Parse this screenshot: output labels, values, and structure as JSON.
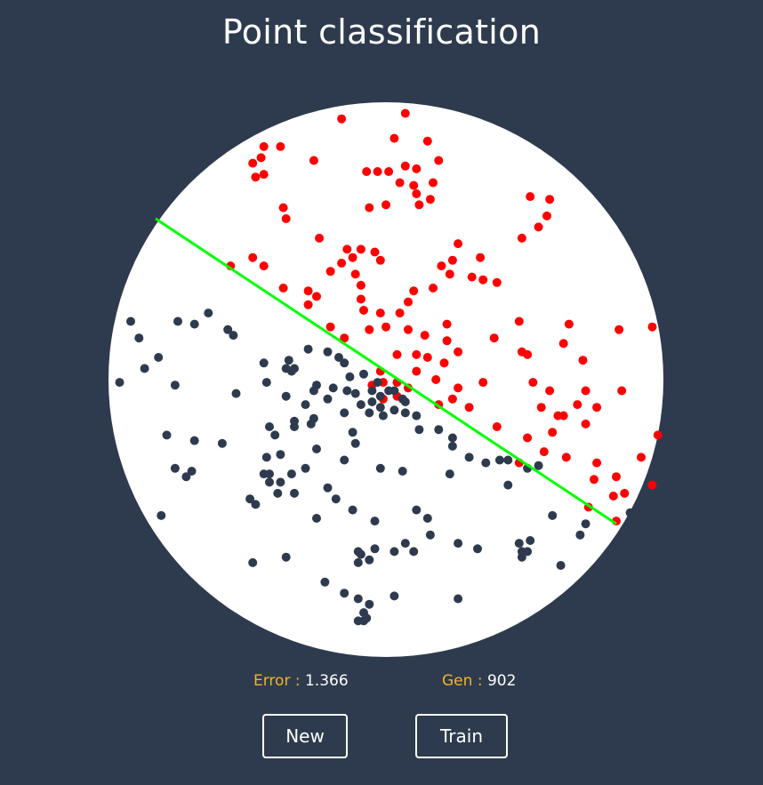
{
  "page": {
    "title": "Point classification",
    "colors": {
      "background": "#2e3b4e",
      "plot": "#ffffff",
      "class_a": "#ff0000",
      "class_b": "#2e3b4e",
      "boundary": "#00ff00",
      "label": "#f0b429"
    }
  },
  "stats": {
    "error_label": "Error",
    "error_value": "1.366",
    "gen_label": "Gen",
    "gen_value": "902"
  },
  "buttons": {
    "new_label": "New",
    "train_label": "Train"
  },
  "chart_data": {
    "type": "scatter",
    "title": "",
    "xlabel": "",
    "ylabel": "",
    "xlim": [
      -1,
      1
    ],
    "ylim": [
      -1,
      1
    ],
    "plot_shape": "circle",
    "grid": false,
    "boundary_line": {
      "x": [
        -0.83,
        0.83
      ],
      "y": [
        0.58,
        -0.52
      ]
    },
    "series": [
      {
        "class": "red",
        "points": [
          [
            -0.16,
            0.94
          ],
          [
            0.07,
            0.96
          ],
          [
            -0.38,
            0.84
          ],
          [
            -0.44,
            0.84
          ],
          [
            -0.26,
            0.79
          ],
          [
            0.03,
            0.87
          ],
          [
            0.15,
            0.86
          ],
          [
            0.19,
            0.79
          ],
          [
            -0.45,
            0.8
          ],
          [
            -0.48,
            0.78
          ],
          [
            -0.47,
            0.73
          ],
          [
            -0.44,
            0.74
          ],
          [
            -0.07,
            0.75
          ],
          [
            -0.03,
            0.75
          ],
          [
            0.01,
            0.75
          ],
          [
            0.07,
            0.77
          ],
          [
            0.11,
            0.76
          ],
          [
            0.05,
            0.71
          ],
          [
            0.1,
            0.7
          ],
          [
            0.17,
            0.71
          ],
          [
            0.11,
            0.67
          ],
          [
            0.16,
            0.65
          ],
          [
            0.12,
            0.63
          ],
          [
            0.0,
            0.63
          ],
          [
            -0.37,
            0.62
          ],
          [
            -0.36,
            0.58
          ],
          [
            -0.06,
            0.62
          ],
          [
            0.52,
            0.66
          ],
          [
            0.59,
            0.65
          ],
          [
            0.58,
            0.59
          ],
          [
            0.55,
            0.55
          ],
          [
            0.49,
            0.51
          ],
          [
            -0.24,
            0.51
          ],
          [
            -0.14,
            0.47
          ],
          [
            -0.12,
            0.44
          ],
          [
            -0.09,
            0.47
          ],
          [
            -0.04,
            0.46
          ],
          [
            -0.16,
            0.42
          ],
          [
            -0.02,
            0.43
          ],
          [
            0.26,
            0.49
          ],
          [
            0.24,
            0.43
          ],
          [
            0.34,
            0.44
          ],
          [
            -0.48,
            0.44
          ],
          [
            -0.44,
            0.41
          ],
          [
            -0.56,
            0.41
          ],
          [
            -0.2,
            0.39
          ],
          [
            -0.11,
            0.38
          ],
          [
            -0.09,
            0.34
          ],
          [
            -0.09,
            0.29
          ],
          [
            0.2,
            0.41
          ],
          [
            0.31,
            0.37
          ],
          [
            0.35,
            0.36
          ],
          [
            0.4,
            0.35
          ],
          [
            0.23,
            0.38
          ],
          [
            0.17,
            0.33
          ],
          [
            0.1,
            0.32
          ],
          [
            0.08,
            0.28
          ],
          [
            -0.37,
            0.33
          ],
          [
            -0.28,
            0.32
          ],
          [
            -0.25,
            0.3
          ],
          [
            -0.28,
            0.27
          ],
          [
            -0.08,
            0.25
          ],
          [
            -0.02,
            0.24
          ],
          [
            0.05,
            0.24
          ],
          [
            -0.06,
            0.18
          ],
          [
            0.0,
            0.19
          ],
          [
            0.08,
            0.18
          ],
          [
            0.22,
            0.2
          ],
          [
            -0.2,
            0.19
          ],
          [
            -0.15,
            0.15
          ],
          [
            0.14,
            0.16
          ],
          [
            0.22,
            0.14
          ],
          [
            0.26,
            0.1
          ],
          [
            0.48,
            0.21
          ],
          [
            0.66,
            0.2
          ],
          [
            0.96,
            0.19
          ],
          [
            0.39,
            0.15
          ],
          [
            0.49,
            0.1
          ],
          [
            0.51,
            0.09
          ],
          [
            0.64,
            0.13
          ],
          [
            0.71,
            0.07
          ],
          [
            0.84,
            0.18
          ],
          [
            0.04,
            0.09
          ],
          [
            0.11,
            0.09
          ],
          [
            0.15,
            0.08
          ],
          [
            0.21,
            0.06
          ],
          [
            -0.02,
            0.03
          ],
          [
            0.04,
            -0.01
          ],
          [
            -0.01,
            -0.01
          ],
          [
            0.08,
            -0.03
          ],
          [
            0.11,
            0.03
          ],
          [
            0.18,
            0.0
          ],
          [
            0.26,
            -0.03
          ],
          [
            0.35,
            -0.01
          ],
          [
            0.53,
            -0.01
          ],
          [
            0.59,
            -0.04
          ],
          [
            0.72,
            -0.04
          ],
          [
            0.85,
            -0.04
          ],
          [
            0.24,
            -0.07
          ],
          [
            0.04,
            -0.06
          ],
          [
            0.19,
            -0.09
          ],
          [
            0.3,
            -0.1
          ],
          [
            0.56,
            -0.1
          ],
          [
            0.69,
            -0.09
          ],
          [
            0.76,
            -0.1
          ],
          [
            -0.01,
            -0.07
          ],
          [
            -0.05,
            -0.02
          ],
          [
            0.4,
            -0.17
          ],
          [
            0.62,
            -0.13
          ],
          [
            0.64,
            -0.13
          ],
          [
            0.51,
            -0.21
          ],
          [
            0.6,
            -0.19
          ],
          [
            0.72,
            -0.16
          ],
          [
            0.48,
            -0.3
          ],
          [
            0.57,
            -0.26
          ],
          [
            0.65,
            -0.28
          ],
          [
            0.76,
            -0.3
          ],
          [
            0.92,
            -0.28
          ],
          [
            0.75,
            -0.36
          ],
          [
            0.83,
            -0.35
          ],
          [
            0.86,
            -0.41
          ],
          [
            0.96,
            -0.38
          ],
          [
            0.98,
            -0.2
          ],
          [
            0.82,
            -0.42
          ],
          [
            0.83,
            -0.51
          ],
          [
            0.73,
            -0.46
          ]
        ]
      },
      {
        "class": "blue",
        "points": [
          [
            -0.92,
            0.21
          ],
          [
            -0.75,
            0.21
          ],
          [
            -0.69,
            0.2
          ],
          [
            -0.64,
            0.24
          ],
          [
            -0.57,
            0.18
          ],
          [
            -0.55,
            0.16
          ],
          [
            -0.89,
            0.15
          ],
          [
            -0.82,
            0.08
          ],
          [
            -0.87,
            0.04
          ],
          [
            -0.96,
            -0.01
          ],
          [
            -0.76,
            -0.02
          ],
          [
            -0.54,
            -0.05
          ],
          [
            -0.44,
            0.06
          ],
          [
            -0.43,
            -0.01
          ],
          [
            -0.36,
            0.04
          ],
          [
            -0.35,
            0.07
          ],
          [
            -0.28,
            0.11
          ],
          [
            -0.21,
            0.1
          ],
          [
            -0.17,
            0.08
          ],
          [
            -0.15,
            0.06
          ],
          [
            -0.13,
            0.01
          ],
          [
            -0.08,
            0.02
          ],
          [
            -0.05,
            -0.04
          ],
          [
            -0.02,
            -0.06
          ],
          [
            -0.03,
            -0.01
          ],
          [
            0.01,
            -0.04
          ],
          [
            0.03,
            -0.04
          ],
          [
            0.06,
            -0.07
          ],
          [
            0.07,
            -0.08
          ],
          [
            -0.34,
            0.03
          ],
          [
            -0.33,
            0.04
          ],
          [
            -0.36,
            -0.06
          ],
          [
            -0.29,
            -0.09
          ],
          [
            -0.26,
            -0.04
          ],
          [
            -0.25,
            -0.02
          ],
          [
            -0.19,
            -0.03
          ],
          [
            -0.21,
            -0.07
          ],
          [
            -0.14,
            -0.04
          ],
          [
            -0.11,
            -0.05
          ],
          [
            -0.09,
            -0.09
          ],
          [
            -0.15,
            -0.12
          ],
          [
            -0.06,
            -0.12
          ],
          [
            -0.05,
            -0.08
          ],
          [
            -0.02,
            -0.1
          ],
          [
            -0.01,
            -0.13
          ],
          [
            0.03,
            -0.11
          ],
          [
            0.07,
            -0.12
          ],
          [
            0.11,
            -0.13
          ],
          [
            0.12,
            -0.18
          ],
          [
            0.19,
            -0.18
          ],
          [
            0.24,
            -0.21
          ],
          [
            -0.42,
            -0.17
          ],
          [
            -0.4,
            -0.2
          ],
          [
            -0.33,
            -0.15
          ],
          [
            -0.33,
            -0.17
          ],
          [
            -0.27,
            -0.16
          ],
          [
            -0.26,
            -0.14
          ],
          [
            -0.12,
            -0.19
          ],
          [
            -0.11,
            -0.23
          ],
          [
            -0.79,
            -0.2
          ],
          [
            -0.69,
            -0.22
          ],
          [
            -0.59,
            -0.23
          ],
          [
            -0.43,
            -0.28
          ],
          [
            -0.38,
            -0.27
          ],
          [
            -0.25,
            -0.25
          ],
          [
            -0.76,
            -0.32
          ],
          [
            -0.7,
            -0.33
          ],
          [
            -0.72,
            -0.35
          ],
          [
            -0.44,
            -0.34
          ],
          [
            -0.42,
            -0.34
          ],
          [
            -0.42,
            -0.37
          ],
          [
            -0.38,
            -0.37
          ],
          [
            -0.34,
            -0.34
          ],
          [
            -0.29,
            -0.32
          ],
          [
            -0.39,
            -0.41
          ],
          [
            -0.33,
            -0.41
          ],
          [
            -0.15,
            -0.29
          ],
          [
            -0.02,
            -0.32
          ],
          [
            0.06,
            -0.33
          ],
          [
            0.23,
            -0.34
          ],
          [
            0.36,
            -0.3
          ],
          [
            0.41,
            -0.29
          ],
          [
            0.44,
            -0.29
          ],
          [
            0.51,
            -0.32
          ],
          [
            0.55,
            -0.31
          ],
          [
            0.44,
            -0.38
          ],
          [
            0.24,
            -0.24
          ],
          [
            0.3,
            -0.28
          ],
          [
            -0.21,
            -0.39
          ],
          [
            -0.18,
            -0.43
          ],
          [
            -0.49,
            -0.43
          ],
          [
            -0.47,
            -0.45
          ],
          [
            -0.81,
            -0.49
          ],
          [
            -0.25,
            -0.5
          ],
          [
            -0.12,
            -0.47
          ],
          [
            -0.04,
            -0.51
          ],
          [
            0.11,
            -0.47
          ],
          [
            0.15,
            -0.5
          ],
          [
            0.26,
            -0.59
          ],
          [
            0.33,
            -0.61
          ],
          [
            0.48,
            -0.59
          ],
          [
            0.52,
            -0.58
          ],
          [
            0.51,
            -0.62
          ],
          [
            0.49,
            -0.64
          ],
          [
            0.49,
            -0.62
          ],
          [
            0.07,
            -0.59
          ],
          [
            0.03,
            -0.62
          ],
          [
            0.1,
            -0.62
          ],
          [
            -0.1,
            -0.62
          ],
          [
            -0.09,
            -0.63
          ],
          [
            -0.04,
            -0.61
          ],
          [
            -0.1,
            -0.66
          ],
          [
            -0.06,
            -0.65
          ],
          [
            0.16,
            -0.56
          ],
          [
            -0.36,
            -0.64
          ],
          [
            -0.48,
            -0.66
          ],
          [
            -0.22,
            -0.73
          ],
          [
            -0.15,
            -0.77
          ],
          [
            -0.1,
            -0.79
          ],
          [
            0.03,
            -0.78
          ],
          [
            0.26,
            -0.79
          ],
          [
            -0.06,
            -0.81
          ],
          [
            -0.08,
            -0.84
          ],
          [
            -0.07,
            -0.86
          ],
          [
            -0.08,
            -0.87
          ],
          [
            -0.1,
            -0.87
          ],
          [
            0.63,
            -0.67
          ],
          [
            0.7,
            -0.56
          ],
          [
            0.6,
            -0.49
          ],
          [
            0.88,
            -0.48
          ],
          [
            0.72,
            -0.52
          ]
        ]
      }
    ]
  }
}
